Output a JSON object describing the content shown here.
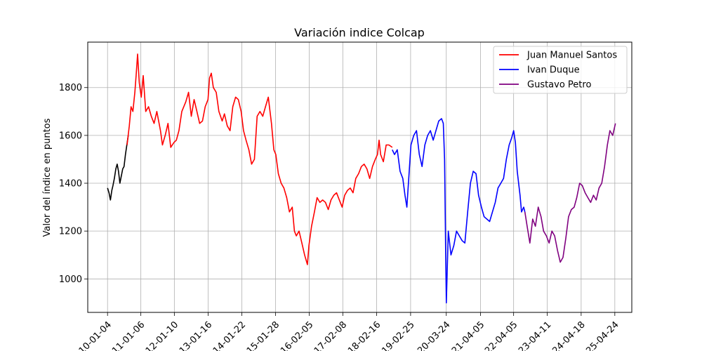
{
  "chart_data": {
    "type": "line",
    "title": "Variación indice Colcap",
    "xlabel": "",
    "ylabel": "Valor del índice en puntos",
    "ylim": [
      860,
      1990
    ],
    "yticks": [
      1000,
      1200,
      1400,
      1600,
      1800
    ],
    "xlim": [
      "2009-05-31",
      "2025-10-28"
    ],
    "xticks": [
      "2010-01-04",
      "2011-01-06",
      "2012-01-10",
      "2013-01-16",
      "2014-01-22",
      "2015-01-28",
      "2016-02-05",
      "2017-02-08",
      "2018-02-16",
      "2019-02-25",
      "2020-03-24",
      "2021-04-05",
      "2022-04-05",
      "2023-04-11",
      "2024-04-18",
      "2025-04-24"
    ],
    "xtick_labels": [
      "2010-01-04",
      "2011-01-06",
      "2012-01-10",
      "2013-01-16",
      "2014-01-22",
      "2015-01-28",
      "2016-02-05",
      "2017-02-08",
      "2018-02-16",
      "2019-02-25",
      "2020-03-24",
      "2021-04-05",
      "2022-04-05",
      "2023-04-11",
      "2024-04-18",
      "2025-04-24"
    ],
    "grid": true,
    "legend_position": "top-right",
    "series": [
      {
        "color": "#000000",
        "x": [
          "2010-01-04",
          "2010-01-20",
          "2010-02-05",
          "2010-02-20",
          "2010-03-05",
          "2010-03-20",
          "2010-04-05",
          "2010-04-20",
          "2010-05-05",
          "2010-05-20",
          "2010-06-05",
          "2010-06-20",
          "2010-07-05",
          "2010-07-20",
          "2010-08-05",
          "2010-08-20"
        ],
        "values": [
          1380,
          1360,
          1330,
          1370,
          1390,
          1420,
          1460,
          1480,
          1450,
          1400,
          1430,
          1460,
          1470,
          1520,
          1560,
          1600
        ]
      },
      {
        "name": "Juan Manuel Santos",
        "color": "#ff0000",
        "x": [
          "2010-08-07",
          "2010-09-01",
          "2010-09-20",
          "2010-10-10",
          "2010-11-01",
          "2010-11-15",
          "2010-12-01",
          "2010-12-20",
          "2011-01-10",
          "2011-02-01",
          "2011-03-01",
          "2011-04-01",
          "2011-05-01",
          "2011-06-01",
          "2011-07-01",
          "2011-08-10",
          "2011-09-01",
          "2011-10-01",
          "2011-11-01",
          "2011-12-01",
          "2012-01-05",
          "2012-02-01",
          "2012-03-01",
          "2012-04-01",
          "2012-05-15",
          "2012-06-15",
          "2012-07-15",
          "2012-08-15",
          "2012-09-15",
          "2012-10-15",
          "2012-11-15",
          "2012-12-15",
          "2013-01-15",
          "2013-02-01",
          "2013-02-20",
          "2013-03-15",
          "2013-04-15",
          "2013-05-15",
          "2013-06-20",
          "2013-07-15",
          "2013-08-15",
          "2013-09-15",
          "2013-10-15",
          "2013-11-15",
          "2013-12-15",
          "2014-01-15",
          "2014-02-10",
          "2014-03-10",
          "2014-04-10",
          "2014-05-10",
          "2014-06-10",
          "2014-07-10",
          "2014-08-10",
          "2014-09-10",
          "2014-10-10",
          "2014-11-10",
          "2014-12-15",
          "2015-01-10",
          "2015-02-01",
          "2015-03-01",
          "2015-04-01",
          "2015-05-01",
          "2015-06-01",
          "2015-07-01",
          "2015-08-01",
          "2015-08-25",
          "2015-09-15",
          "2015-10-15",
          "2015-11-15",
          "2015-12-15",
          "2016-01-15",
          "2016-02-01",
          "2016-03-01",
          "2016-04-01",
          "2016-05-01",
          "2016-06-01",
          "2016-07-01",
          "2016-08-01",
          "2016-09-01",
          "2016-10-01",
          "2016-11-01",
          "2016-12-01",
          "2017-01-01",
          "2017-02-01",
          "2017-03-01",
          "2017-04-01",
          "2017-05-01",
          "2017-06-01",
          "2017-07-01",
          "2017-08-01",
          "2017-09-01",
          "2017-10-01",
          "2017-11-01",
          "2017-12-01",
          "2018-01-01",
          "2018-02-01",
          "2018-02-25",
          "2018-03-15",
          "2018-04-01",
          "2018-05-01",
          "2018-06-01",
          "2018-07-01",
          "2018-08-07"
        ],
        "values": [
          1560,
          1640,
          1720,
          1700,
          1780,
          1850,
          1940,
          1820,
          1760,
          1850,
          1700,
          1720,
          1680,
          1650,
          1700,
          1620,
          1560,
          1600,
          1650,
          1550,
          1570,
          1580,
          1620,
          1700,
          1740,
          1780,
          1680,
          1750,
          1700,
          1650,
          1660,
          1720,
          1750,
          1840,
          1860,
          1800,
          1780,
          1700,
          1660,
          1690,
          1640,
          1620,
          1720,
          1760,
          1750,
          1700,
          1620,
          1580,
          1540,
          1480,
          1500,
          1680,
          1700,
          1680,
          1720,
          1760,
          1650,
          1540,
          1520,
          1440,
          1400,
          1380,
          1340,
          1280,
          1300,
          1200,
          1180,
          1200,
          1150,
          1100,
          1060,
          1140,
          1220,
          1280,
          1340,
          1320,
          1330,
          1320,
          1290,
          1330,
          1350,
          1360,
          1330,
          1300,
          1350,
          1370,
          1380,
          1360,
          1420,
          1440,
          1470,
          1480,
          1460,
          1420,
          1470,
          1500,
          1520,
          1580,
          1520,
          1490,
          1560,
          1560,
          1550
        ]
      },
      {
        "name": "Ivan Duque",
        "color": "#0000ff",
        "x": [
          "2018-08-07",
          "2018-09-01",
          "2018-10-01",
          "2018-11-01",
          "2018-12-01",
          "2018-12-25",
          "2019-01-15",
          "2019-02-01",
          "2019-03-01",
          "2019-04-01",
          "2019-05-01",
          "2019-06-01",
          "2019-07-01",
          "2019-08-01",
          "2019-09-01",
          "2019-10-01",
          "2019-11-01",
          "2019-12-01",
          "2020-01-01",
          "2020-02-01",
          "2020-02-20",
          "2020-03-05",
          "2020-03-18",
          "2020-03-25",
          "2020-04-15",
          "2020-05-15",
          "2020-06-15",
          "2020-07-15",
          "2020-08-15",
          "2020-09-15",
          "2020-10-15",
          "2020-11-15",
          "2020-12-15",
          "2021-01-15",
          "2021-02-15",
          "2021-03-15",
          "2021-04-15",
          "2021-05-15",
          "2021-06-15",
          "2021-07-15",
          "2021-08-15",
          "2021-09-15",
          "2021-10-15",
          "2021-11-15",
          "2021-12-15",
          "2022-01-15",
          "2022-02-15",
          "2022-03-15",
          "2022-04-05",
          "2022-04-25",
          "2022-05-15",
          "2022-06-15",
          "2022-07-01",
          "2022-07-25",
          "2022-08-07"
        ],
        "values": [
          1540,
          1520,
          1540,
          1450,
          1420,
          1350,
          1300,
          1400,
          1560,
          1600,
          1620,
          1520,
          1470,
          1560,
          1600,
          1620,
          1580,
          1620,
          1660,
          1670,
          1650,
          1500,
          1100,
          900,
          1200,
          1100,
          1140,
          1200,
          1180,
          1160,
          1150,
          1280,
          1400,
          1450,
          1440,
          1350,
          1300,
          1260,
          1250,
          1240,
          1280,
          1320,
          1380,
          1400,
          1420,
          1500,
          1560,
          1590,
          1620,
          1570,
          1450,
          1350,
          1280,
          1300,
          1280
        ]
      },
      {
        "name": "Gustavo Petro",
        "color": "#800080",
        "x": [
          "2022-08-07",
          "2022-09-01",
          "2022-10-01",
          "2022-11-01",
          "2022-12-01",
          "2023-01-01",
          "2023-02-01",
          "2023-03-01",
          "2023-04-01",
          "2023-05-01",
          "2023-06-01",
          "2023-07-01",
          "2023-08-01",
          "2023-09-01",
          "2023-10-01",
          "2023-11-01",
          "2023-12-01",
          "2024-01-01",
          "2024-02-01",
          "2024-03-01",
          "2024-04-01",
          "2024-05-01",
          "2024-06-01",
          "2024-07-01",
          "2024-08-01",
          "2024-09-01",
          "2024-10-01",
          "2024-11-01",
          "2024-12-01",
          "2025-01-01",
          "2025-02-01",
          "2025-03-01",
          "2025-04-01",
          "2025-05-01"
        ],
        "values": [
          1280,
          1220,
          1150,
          1250,
          1220,
          1300,
          1260,
          1200,
          1180,
          1150,
          1200,
          1180,
          1120,
          1070,
          1090,
          1170,
          1260,
          1290,
          1300,
          1340,
          1400,
          1390,
          1360,
          1340,
          1320,
          1350,
          1330,
          1380,
          1400,
          1470,
          1560,
          1620,
          1600,
          1650
        ]
      }
    ]
  }
}
